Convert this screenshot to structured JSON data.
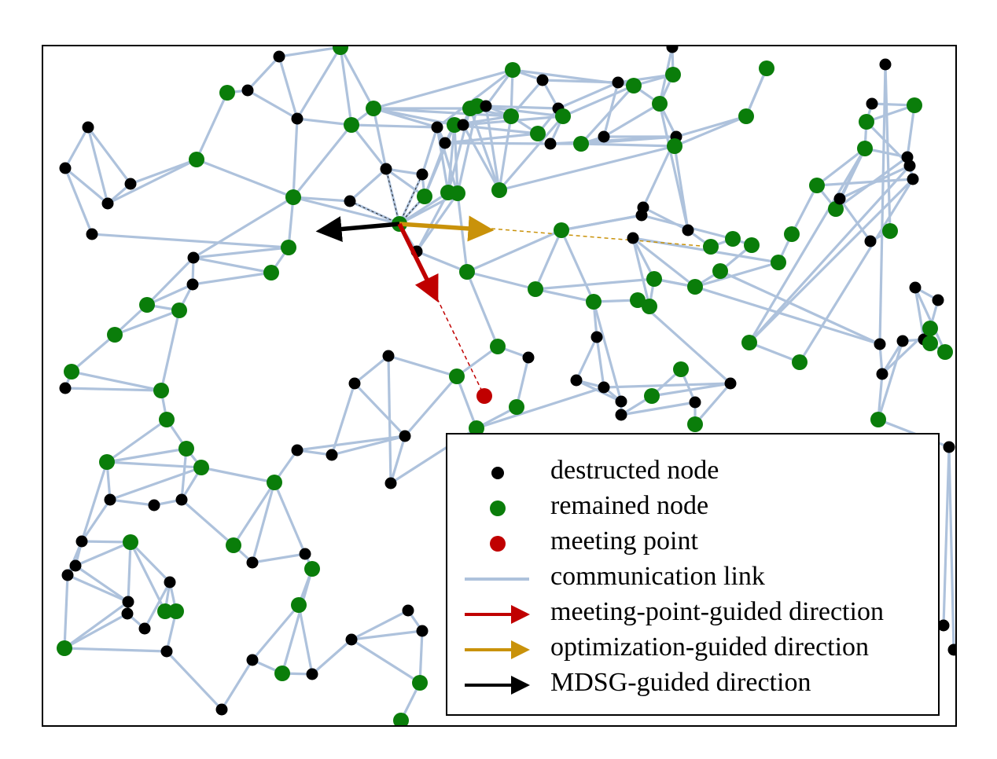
{
  "colors": {
    "background": "#ffffff",
    "frame": "#000000",
    "link": "#aec2dc",
    "destructed": "#000000",
    "remained": "#0a7d0a",
    "meeting": "#c00000",
    "meeting_arrow": "#c00000",
    "optimization_arrow": "#c9920a",
    "mdsg_arrow": "#000000"
  },
  "legend": {
    "destructed": "destructed node",
    "remained": "remained node",
    "meeting": "meeting point",
    "link": "communication link",
    "meeting_dir": "meeting-point-guided direction",
    "optimization_dir": "optimization-guided direction",
    "mdsg_dir": "MDSG-guided direction"
  }
}
